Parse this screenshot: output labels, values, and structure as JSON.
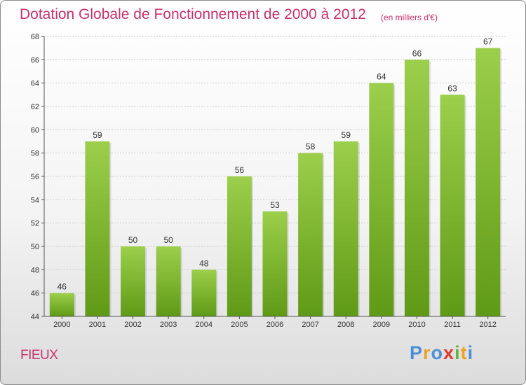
{
  "chart_data": {
    "type": "bar",
    "title": "Dotation Globale de Fonctionnement de 2000 à 2012",
    "subtitle": "(en milliers d'€)",
    "categories": [
      "2000",
      "2001",
      "2002",
      "2003",
      "2004",
      "2005",
      "2006",
      "2007",
      "2008",
      "2009",
      "2010",
      "2011",
      "2012"
    ],
    "values": [
      46,
      59,
      50,
      50,
      48,
      56,
      53,
      58,
      59,
      64,
      66,
      63,
      67
    ],
    "ylim": [
      44,
      68
    ],
    "yticks": [
      44,
      46,
      48,
      50,
      52,
      54,
      56,
      58,
      60,
      62,
      64,
      66,
      68
    ],
    "xlabel": "",
    "ylabel": "",
    "grid": true,
    "bar_color_top": "#9ccf4b",
    "bar_color_bottom": "#5f9a16"
  },
  "footer": {
    "commune": "FIEUX",
    "logo_letters": [
      "P",
      "r",
      "o",
      "x",
      "i",
      "t",
      "i"
    ],
    "logo_colors": [
      "#4d8fd6",
      "#f0a028",
      "#4d8fd6",
      "#e03a2b",
      "#64b436",
      "#f0a028",
      "#4d8fd6"
    ]
  }
}
